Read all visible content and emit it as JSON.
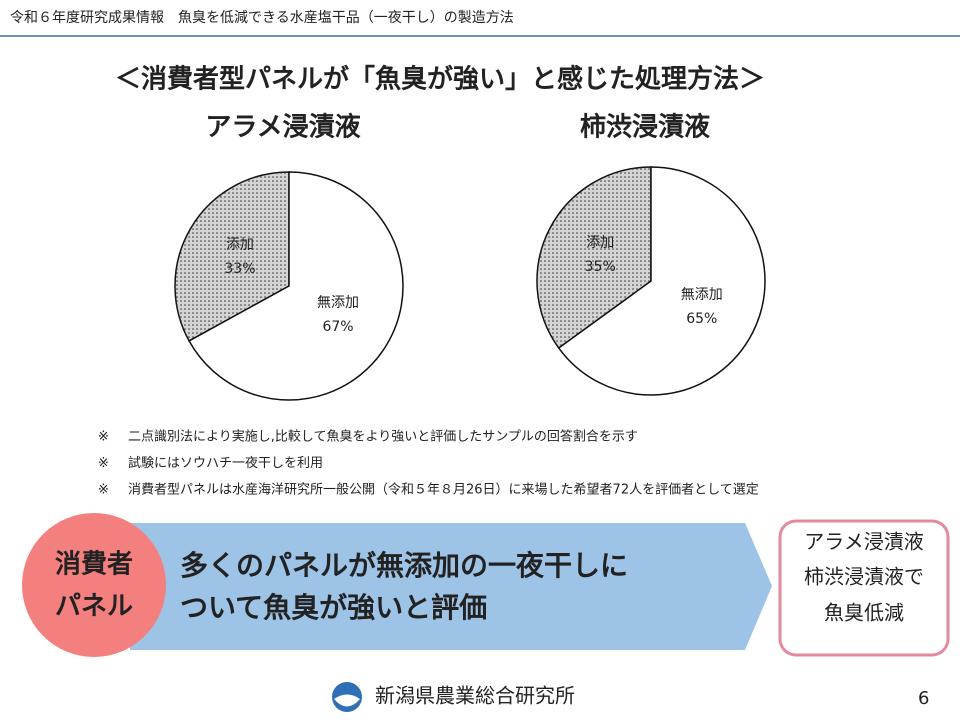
{
  "header": {
    "title": "令和６年度研究成果情報　魚臭を低減できる水産塩干品（一夜干し）の製造方法"
  },
  "title": "＜消費者型パネルが「魚臭が強い」と感じた処理方法＞",
  "chart_data": [
    {
      "type": "pie",
      "title": "アラメ浸漬液",
      "categories": [
        "添加",
        "無添加"
      ],
      "values": [
        33,
        67
      ],
      "value_labels": [
        "33%",
        "67%"
      ],
      "colors": [
        "#d4d4d4",
        "#ffffff"
      ]
    },
    {
      "type": "pie",
      "title": "柿渋浸漬液",
      "categories": [
        "添加",
        "無添加"
      ],
      "values": [
        35,
        65
      ],
      "value_labels": [
        "35%",
        "65%"
      ],
      "colors": [
        "#d4d4d4",
        "#ffffff"
      ]
    }
  ],
  "notes": [
    {
      "mark": "※",
      "text": "二点識別法により実施し,比較して魚臭をより強いと評価したサンプルの回答割合を示す"
    },
    {
      "mark": "※",
      "text": "試験にはソウハチ一夜干しを利用"
    },
    {
      "mark": "※",
      "text": "消費者型パネルは水産海洋研究所一般公開（令和５年８月26日）に来場した希望者72人を評価者として選定"
    }
  ],
  "banner": {
    "badge": [
      "消費者",
      "パネル"
    ],
    "text": [
      "多くのパネルが無添加の一夜干しに",
      "ついて魚臭が強いと評価"
    ]
  },
  "conclusion": [
    "アラメ浸漬液",
    "柿渋浸漬液で",
    "魚臭低減"
  ],
  "footer": {
    "organization": "新潟県農業総合研究所",
    "page": "6"
  }
}
